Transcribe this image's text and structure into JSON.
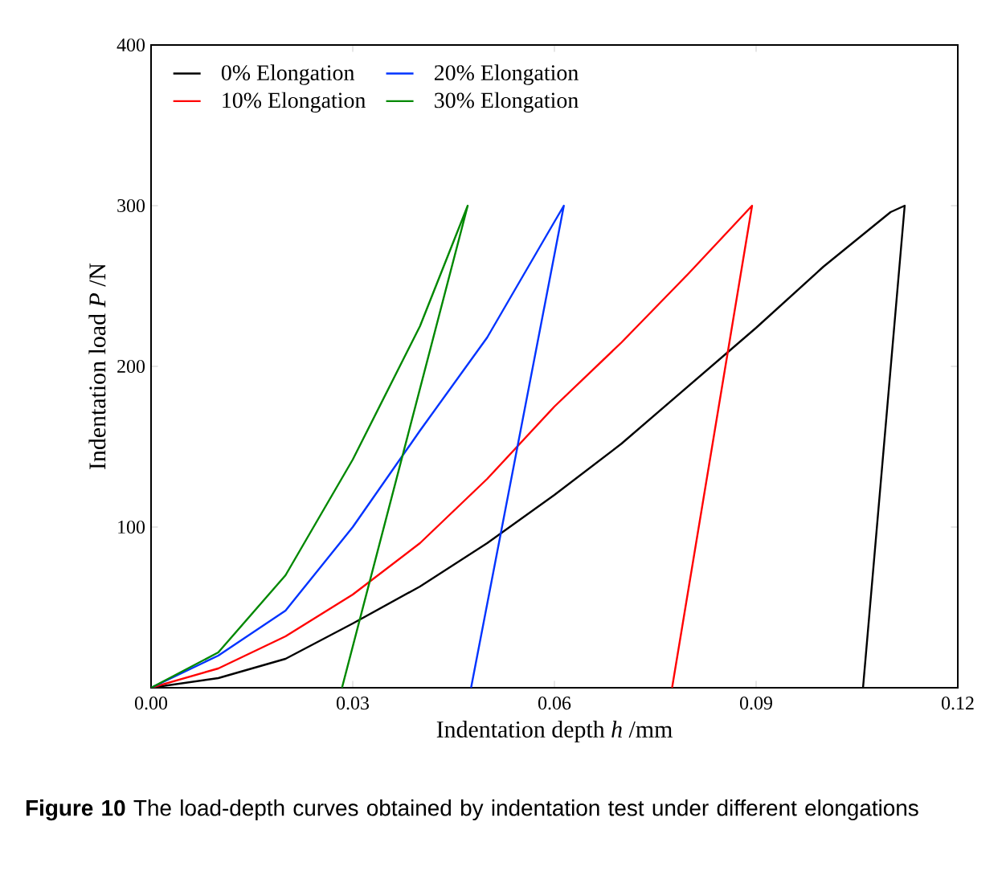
{
  "chart_data": {
    "type": "line",
    "xlabel": "Indentation depth *h* /mm",
    "ylabel": "Indentation load *P* /N",
    "xlim": [
      0,
      0.12
    ],
    "ylim": [
      0,
      400
    ],
    "xticks": [
      {
        "value": 0,
        "label": "0.00"
      },
      {
        "value": 0.03,
        "label": "0.03"
      },
      {
        "value": 0.06,
        "label": "0.06"
      },
      {
        "value": 0.09,
        "label": "0.09"
      },
      {
        "value": 0.12,
        "label": "0.12"
      }
    ],
    "yticks": [
      100,
      200,
      300,
      400
    ],
    "legend": "top left",
    "line_style": "solid",
    "series": [
      {
        "name": "0% Elongation",
        "color": "#000000",
        "x": [
          0,
          0.01,
          0.02,
          0.03,
          0.04,
          0.05,
          0.06,
          0.07,
          0.08,
          0.09,
          0.1,
          0.11,
          0.1121,
          0.1059
        ],
        "values": [
          0,
          6,
          18,
          40,
          63,
          90,
          120,
          152,
          188,
          224,
          262,
          296,
          300,
          0
        ]
      },
      {
        "name": "10% Elongation",
        "color": "#ff0000",
        "x": [
          0,
          0.01,
          0.02,
          0.03,
          0.04,
          0.05,
          0.06,
          0.07,
          0.08,
          0.0894,
          0.0775
        ],
        "values": [
          0,
          12,
          32,
          58,
          90,
          130,
          175,
          215,
          258,
          300,
          0
        ]
      },
      {
        "name": "20% Elongation",
        "color": "#0033ff",
        "x": [
          0,
          0.01,
          0.02,
          0.03,
          0.04,
          0.05,
          0.06,
          0.0614,
          0.0476
        ],
        "values": [
          0,
          20,
          48,
          100,
          160,
          218,
          290,
          300,
          0
        ]
      },
      {
        "name": "30% Elongation",
        "color": "#008800",
        "x": [
          0,
          0.01,
          0.02,
          0.03,
          0.04,
          0.0471,
          0.0284
        ],
        "values": [
          0,
          22,
          70,
          142,
          225,
          300,
          0
        ]
      }
    ],
    "annotations": [
      "**Figure 10** The load-depth curves obtained by indentation test under different elongations"
    ]
  }
}
